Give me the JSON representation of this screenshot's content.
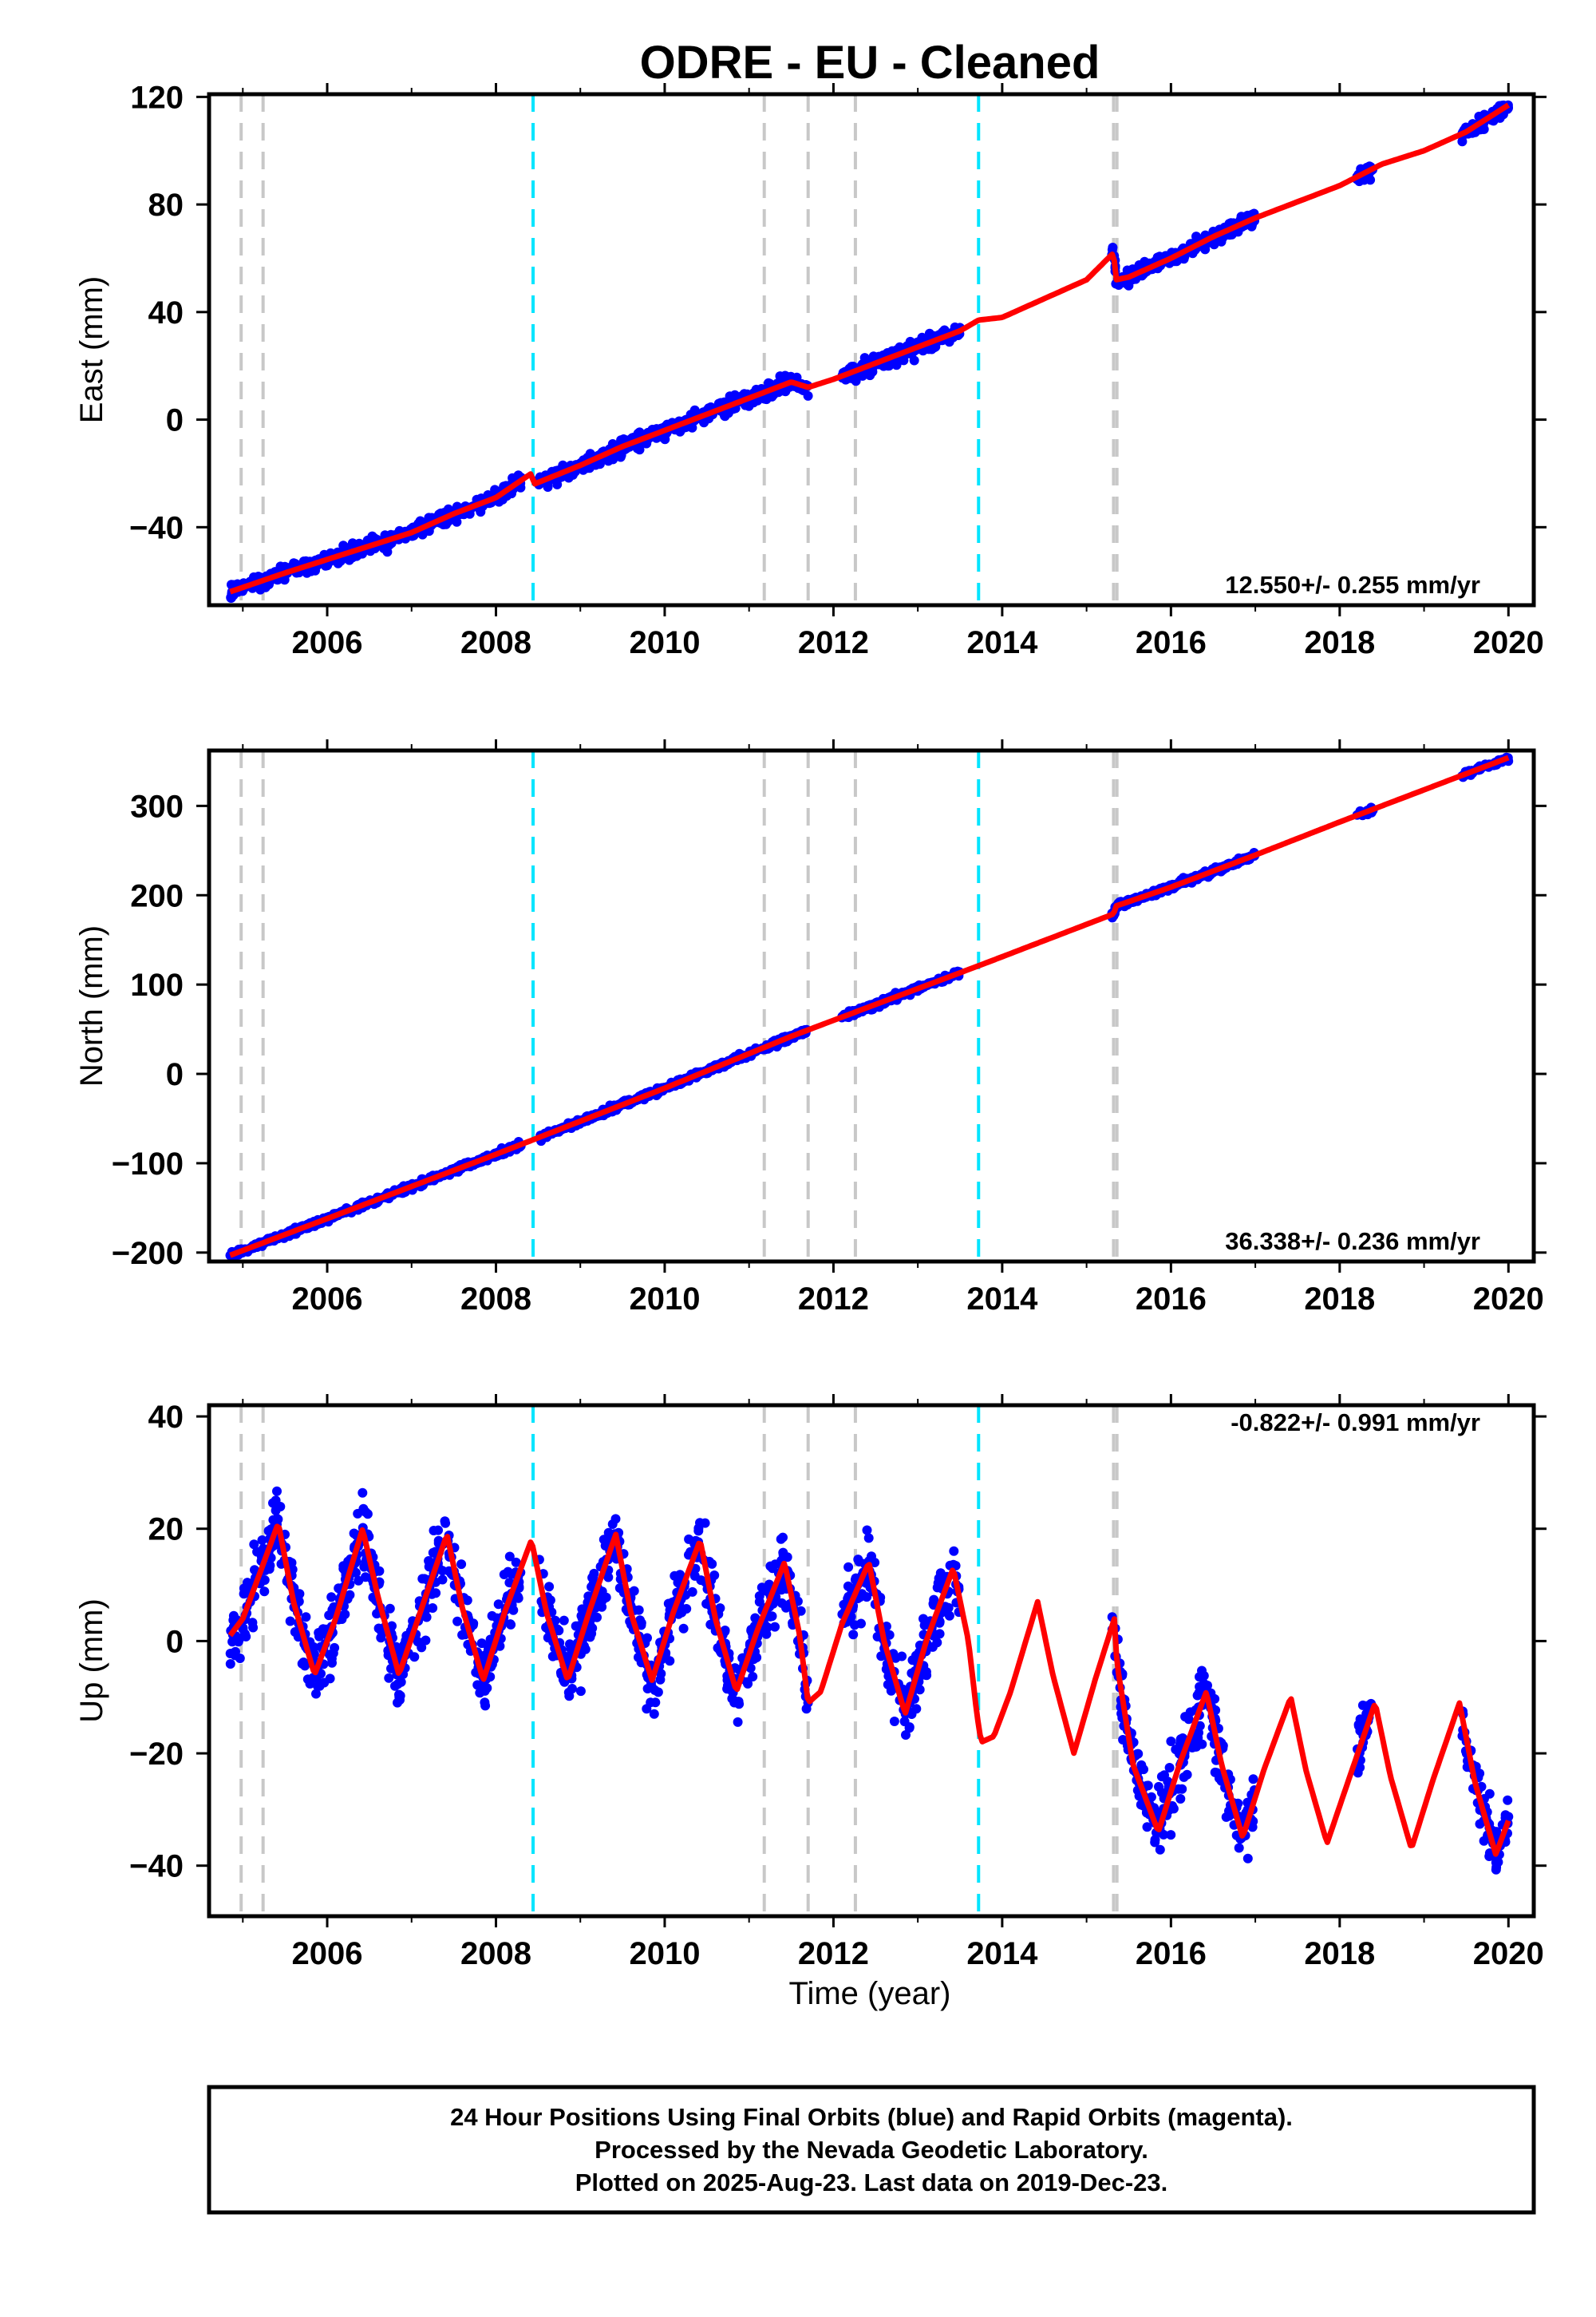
{
  "title": "ODRE  - EU - Cleaned",
  "x_axis_label": "Time (year)",
  "footer_lines": [
    "24 Hour Positions Using Final Orbits (blue) and Rapid Orbits (magenta).",
    "Processed by the Nevada Geodetic Laboratory.",
    "Plotted on 2025-Aug-23. Last data on 2019-Dec-23."
  ],
  "colors": {
    "observations": "#0000ff",
    "model": "#ff0000",
    "equipment_change": "#c8c8c8",
    "event": "#00e5ff",
    "frame": "#000000"
  },
  "chart_data": [
    {
      "type": "scatter",
      "panel": "east",
      "ylabel": "East (mm)",
      "rate_text": "12.550+/- 0.255 mm/yr",
      "xlim": [
        2004.6,
        2020.3
      ],
      "ylim": [
        -69,
        121
      ],
      "xticks": [
        2006,
        2008,
        2010,
        2012,
        2014,
        2016,
        2018,
        2020
      ],
      "yticks": [
        -40,
        0,
        40,
        80,
        120
      ],
      "dashed_lines_gray": [
        2004.98,
        2005.24,
        2011.18,
        2011.7,
        2012.26,
        2015.32,
        2015.36
      ],
      "dashed_lines_cyan": [
        2008.44,
        2013.72
      ],
      "observation_ranges": [
        [
          2004.85,
          2008.3
        ],
        [
          2008.5,
          2011.7
        ],
        [
          2012.1,
          2013.5
        ],
        [
          2015.3,
          2017.0
        ],
        [
          2018.2,
          2018.4
        ],
        [
          2019.45,
          2020.0
        ]
      ],
      "model_series": {
        "x": [
          2004.85,
          2005.5,
          2006.0,
          2006.5,
          2007.0,
          2007.5,
          2008.0,
          2008.42,
          2008.45,
          2009.0,
          2009.5,
          2010.0,
          2010.5,
          2011.0,
          2011.5,
          2011.7,
          2012.0,
          2012.5,
          2013.0,
          2013.5,
          2013.72,
          2014.0,
          2014.5,
          2015.0,
          2015.32,
          2015.35,
          2015.5,
          2016.0,
          2016.5,
          2017.0,
          2017.5,
          2018.0,
          2018.5,
          2019.0,
          2019.5,
          2020.0
        ],
        "y": [
          -64,
          -57,
          -52,
          -47,
          -42,
          -35,
          -29,
          -20,
          -24,
          -17,
          -10,
          -4,
          2,
          8,
          14,
          12,
          15,
          21,
          27,
          33,
          37,
          38,
          45,
          52,
          62,
          52,
          53,
          60,
          68,
          75,
          81,
          87,
          95,
          100,
          107,
          117
        ]
      }
    },
    {
      "type": "scatter",
      "panel": "north",
      "ylabel": "North (mm)",
      "rate_text": "36.338+/- 0.236 mm/yr",
      "xlim": [
        2004.6,
        2020.3
      ],
      "ylim": [
        -210,
        362
      ],
      "xticks": [
        2006,
        2008,
        2010,
        2012,
        2014,
        2016,
        2018,
        2020
      ],
      "yticks": [
        -200,
        -100,
        0,
        100,
        200,
        300
      ],
      "dashed_lines_gray": [
        2004.98,
        2005.24,
        2011.18,
        2011.7,
        2012.26,
        2015.32,
        2015.36
      ],
      "dashed_lines_cyan": [
        2008.44,
        2013.72
      ],
      "observation_ranges": [
        [
          2004.85,
          2008.3
        ],
        [
          2008.5,
          2011.7
        ],
        [
          2012.1,
          2013.5
        ],
        [
          2015.3,
          2017.0
        ],
        [
          2018.2,
          2018.4
        ],
        [
          2019.45,
          2020.0
        ]
      ],
      "model_series": {
        "x": [
          2004.85,
          2006.0,
          2008.0,
          2010.0,
          2011.5,
          2012.0,
          2013.72,
          2015.32,
          2015.35,
          2016.0,
          2017.0,
          2018.0,
          2019.0,
          2020.0
        ],
        "y": [
          -203,
          -162,
          -90,
          -16,
          42,
          60,
          121,
          179,
          188,
          209,
          245,
          282,
          318,
          354
        ]
      }
    },
    {
      "type": "scatter",
      "panel": "up",
      "ylabel": "Up (mm)",
      "xlabel": "Time (year)",
      "rate_text": "-0.822+/- 0.991 mm/yr",
      "xlim": [
        2004.6,
        2020.3
      ],
      "ylim": [
        -49,
        42
      ],
      "xticks": [
        2006,
        2008,
        2010,
        2012,
        2014,
        2016,
        2018,
        2020
      ],
      "yticks": [
        -40,
        -20,
        0,
        20,
        40
      ],
      "dashed_lines_gray": [
        2004.98,
        2005.24,
        2011.18,
        2011.7,
        2012.26,
        2015.32,
        2015.36
      ],
      "dashed_lines_cyan": [
        2008.44,
        2013.72
      ],
      "observation_ranges": [
        [
          2004.85,
          2008.3
        ],
        [
          2008.5,
          2011.7
        ],
        [
          2012.1,
          2013.5
        ],
        [
          2015.3,
          2017.0
        ],
        [
          2018.2,
          2018.4
        ],
        [
          2019.45,
          2020.0
        ]
      ],
      "model_series": {
        "x": [
          2004.85,
          2005.0,
          2005.2,
          2005.42,
          2005.6,
          2005.85,
          2006.1,
          2006.42,
          2006.6,
          2006.85,
          2007.1,
          2007.42,
          2007.6,
          2007.85,
          2008.1,
          2008.42,
          2008.6,
          2008.85,
          2009.1,
          2009.42,
          2009.6,
          2009.85,
          2010.1,
          2010.42,
          2010.6,
          2010.85,
          2011.1,
          2011.42,
          2011.6,
          2011.7,
          2011.85,
          2012.1,
          2012.42,
          2012.6,
          2012.85,
          2013.1,
          2013.42,
          2013.6,
          2013.7,
          2013.75,
          2013.9,
          2014.1,
          2014.42,
          2014.6,
          2014.85,
          2015.1,
          2015.33,
          2015.36,
          2015.55,
          2015.85,
          2016.1,
          2016.42,
          2016.6,
          2016.85,
          2017.1,
          2017.42,
          2017.6,
          2017.85,
          2018.1,
          2018.42,
          2018.6,
          2018.85,
          2019.1,
          2019.42,
          2019.6,
          2019.85,
          2020.0
        ],
        "y": [
          1,
          4,
          12,
          21,
          7,
          -6,
          4,
          20,
          8,
          -6,
          5,
          19,
          6,
          -7,
          5,
          18,
          5,
          -7,
          5,
          19,
          5,
          -7,
          5,
          18,
          4,
          -9,
          2,
          14,
          1,
          -11,
          -9,
          3,
          14,
          0,
          -13,
          0,
          13,
          0,
          -13,
          -18,
          -17,
          -9,
          7,
          -6,
          -20,
          -7,
          4,
          -4,
          -22,
          -34,
          -22,
          -9,
          -22,
          -35,
          -23,
          -10,
          -23,
          -36,
          -25,
          -11,
          -24,
          -37,
          -25,
          -11,
          -25,
          -38,
          -32
        ]
      }
    }
  ]
}
